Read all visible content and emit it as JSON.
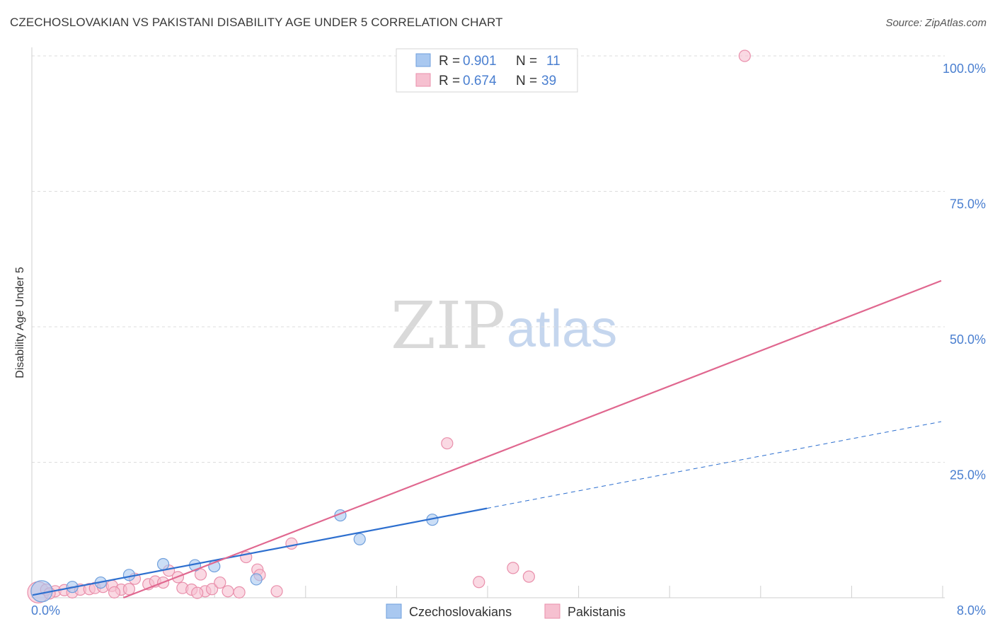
{
  "title": "CZECHOSLOVAKIAN VS PAKISTANI DISABILITY AGE UNDER 5 CORRELATION CHART",
  "source": "Source: ZipAtlas.com",
  "watermark": {
    "part1": "ZIP",
    "part2": "atlas"
  },
  "colors": {
    "blue_fill": "#a9c8f0",
    "blue_stroke": "#6f9fdc",
    "blue_line": "#2d6fcf",
    "pink_fill": "#f6c0d0",
    "pink_stroke": "#e98fab",
    "pink_line": "#e0678f",
    "grid": "#dddddd",
    "tick_text": "#4a7fd0"
  },
  "chart_data": {
    "type": "scatter",
    "title": "CZECHOSLOVAKIAN VS PAKISTANI DISABILITY AGE UNDER 5 CORRELATION CHART",
    "xlabel": "",
    "ylabel": "Disability Age Under 5",
    "xlim": [
      0,
      8
    ],
    "ylim": [
      0,
      100
    ],
    "x_tick_labels": [
      "0.0%",
      "8.0%"
    ],
    "y_ticks": [
      25,
      50,
      75,
      100
    ],
    "y_tick_labels": [
      "25.0%",
      "50.0%",
      "75.0%",
      "100.0%"
    ],
    "legend_position": "top-center",
    "legend": [
      {
        "series": "Czechoslovakians",
        "r_label": "R =",
        "r": "0.901",
        "n_label": "N =",
        "n": "11"
      },
      {
        "series": "Pakistanis",
        "r_label": "R =",
        "r": "0.674",
        "n_label": "N =",
        "n": "39"
      }
    ],
    "series": [
      {
        "name": "Czechoslovakians",
        "color": "blue",
        "points": [
          {
            "x": 0.08,
            "y": 1.2,
            "size": "large"
          },
          {
            "x": 0.35,
            "y": 2.0
          },
          {
            "x": 0.6,
            "y": 2.8
          },
          {
            "x": 0.85,
            "y": 4.2
          },
          {
            "x": 1.15,
            "y": 6.2
          },
          {
            "x": 1.43,
            "y": 6.0
          },
          {
            "x": 1.6,
            "y": 5.8
          },
          {
            "x": 1.97,
            "y": 3.4
          },
          {
            "x": 2.71,
            "y": 15.2
          },
          {
            "x": 2.88,
            "y": 10.8
          },
          {
            "x": 3.52,
            "y": 14.4
          }
        ],
        "trend": {
          "x1": 0.0,
          "y1": 0.5,
          "x2": 4.0,
          "y2": 16.5,
          "dash_to_x": 8.0,
          "dash_to_y": 32.5
        }
      },
      {
        "name": "Pakistanis",
        "color": "pink",
        "points": [
          {
            "x": 0.05,
            "y": 1.0,
            "size": "large"
          },
          {
            "x": 0.12,
            "y": 1.5
          },
          {
            "x": 0.2,
            "y": 1.2
          },
          {
            "x": 0.28,
            "y": 1.4
          },
          {
            "x": 0.35,
            "y": 1.0
          },
          {
            "x": 0.42,
            "y": 1.5
          },
          {
            "x": 0.5,
            "y": 1.6
          },
          {
            "x": 0.55,
            "y": 1.8
          },
          {
            "x": 0.62,
            "y": 2.0
          },
          {
            "x": 0.7,
            "y": 2.2
          },
          {
            "x": 0.78,
            "y": 1.5
          },
          {
            "x": 0.85,
            "y": 1.6
          },
          {
            "x": 0.9,
            "y": 3.5
          },
          {
            "x": 1.02,
            "y": 2.5
          },
          {
            "x": 1.08,
            "y": 3.0
          },
          {
            "x": 1.15,
            "y": 2.8
          },
          {
            "x": 1.2,
            "y": 5.0
          },
          {
            "x": 1.28,
            "y": 3.8
          },
          {
            "x": 1.32,
            "y": 1.8
          },
          {
            "x": 1.4,
            "y": 1.5
          },
          {
            "x": 1.48,
            "y": 4.3
          },
          {
            "x": 1.52,
            "y": 1.2
          },
          {
            "x": 1.58,
            "y": 1.6
          },
          {
            "x": 1.65,
            "y": 2.8
          },
          {
            "x": 1.72,
            "y": 1.2
          },
          {
            "x": 1.82,
            "y": 1.0
          },
          {
            "x": 1.88,
            "y": 7.5
          },
          {
            "x": 1.98,
            "y": 5.2
          },
          {
            "x": 2.0,
            "y": 4.2
          },
          {
            "x": 2.15,
            "y": 1.2
          },
          {
            "x": 2.28,
            "y": 10.0
          },
          {
            "x": 3.65,
            "y": 28.5
          },
          {
            "x": 3.93,
            "y": 2.9
          },
          {
            "x": 4.23,
            "y": 5.5
          },
          {
            "x": 4.37,
            "y": 3.9
          },
          {
            "x": 6.27,
            "y": 100.0
          },
          {
            "x": 0.15,
            "y": 0.8
          },
          {
            "x": 0.72,
            "y": 1.0
          },
          {
            "x": 1.45,
            "y": 0.9
          }
        ],
        "trend": {
          "x1": 0.8,
          "y1": 0.0,
          "x2": 8.0,
          "y2": 58.5
        }
      }
    ],
    "bottom_legend": [
      "Czechoslovakians",
      "Pakistanis"
    ]
  }
}
